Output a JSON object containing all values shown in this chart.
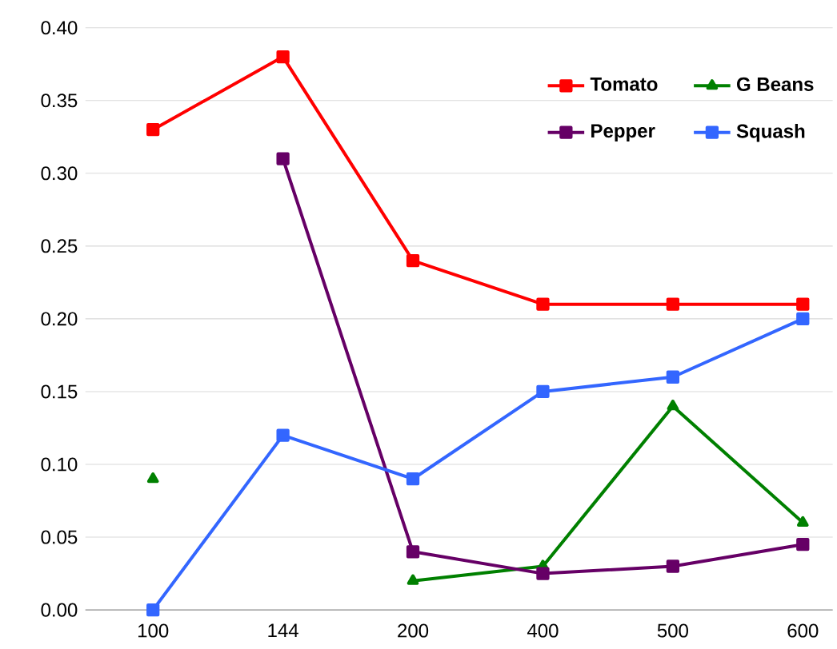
{
  "chart_data": {
    "type": "line",
    "categories": [
      "100",
      "144",
      "200",
      "400",
      "500",
      "600"
    ],
    "series": [
      {
        "name": "Tomato",
        "color": "#ff0000",
        "marker": "square",
        "values": [
          0.33,
          0.38,
          0.24,
          0.21,
          0.21,
          0.21
        ]
      },
      {
        "name": "G Beans",
        "color": "#008000",
        "marker": "triangle",
        "values": [
          0.09,
          null,
          0.02,
          0.03,
          0.14,
          0.06
        ]
      },
      {
        "name": "Pepper",
        "color": "#660066",
        "marker": "square",
        "values": [
          null,
          0.31,
          0.04,
          0.025,
          0.03,
          0.045
        ]
      },
      {
        "name": "Squash",
        "color": "#3366ff",
        "marker": "square",
        "values": [
          0.0,
          0.12,
          0.09,
          0.15,
          0.16,
          0.2
        ]
      }
    ],
    "ylim": [
      0,
      0.4
    ],
    "yticks": [
      {
        "value": 0,
        "label": "0.00"
      },
      {
        "value": 0.05,
        "label": "0.05"
      },
      {
        "value": 0.1,
        "label": "0.10"
      },
      {
        "value": 0.15,
        "label": "0.15"
      },
      {
        "value": 0.2,
        "label": "0.20"
      },
      {
        "value": 0.25,
        "label": "0.25"
      },
      {
        "value": 0.3,
        "label": "0.30"
      },
      {
        "value": 0.35,
        "label": "0.35"
      },
      {
        "value": 0.4,
        "label": "0.40"
      }
    ],
    "grid": "y",
    "legend": "top right",
    "line_style": "solid"
  }
}
